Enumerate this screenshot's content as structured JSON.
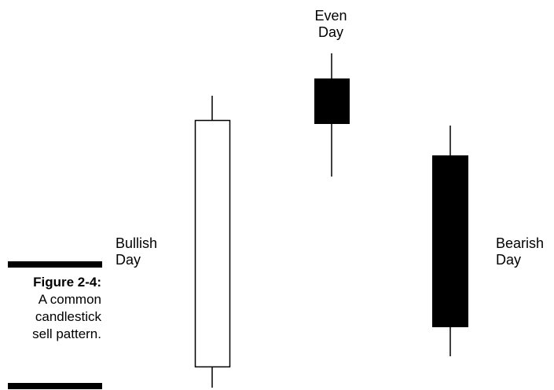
{
  "labels": {
    "even": [
      "Even",
      "Day"
    ],
    "bullish": [
      "Bullish",
      "Day"
    ],
    "bearish": [
      "Bearish",
      "Day"
    ]
  },
  "caption": {
    "figure_number": "Figure 2-4:",
    "lines": [
      "A common",
      "candlestick",
      "sell pattern."
    ]
  },
  "candles": [
    {
      "name": "bullish-candle",
      "type": "bullish",
      "fill": "#ffffff"
    },
    {
      "name": "even-candle",
      "type": "bearish",
      "fill": "#000000"
    },
    {
      "name": "bearish-candle",
      "type": "bearish",
      "fill": "#000000"
    }
  ],
  "colors": {
    "ink": "#000000",
    "background": "#ffffff"
  }
}
